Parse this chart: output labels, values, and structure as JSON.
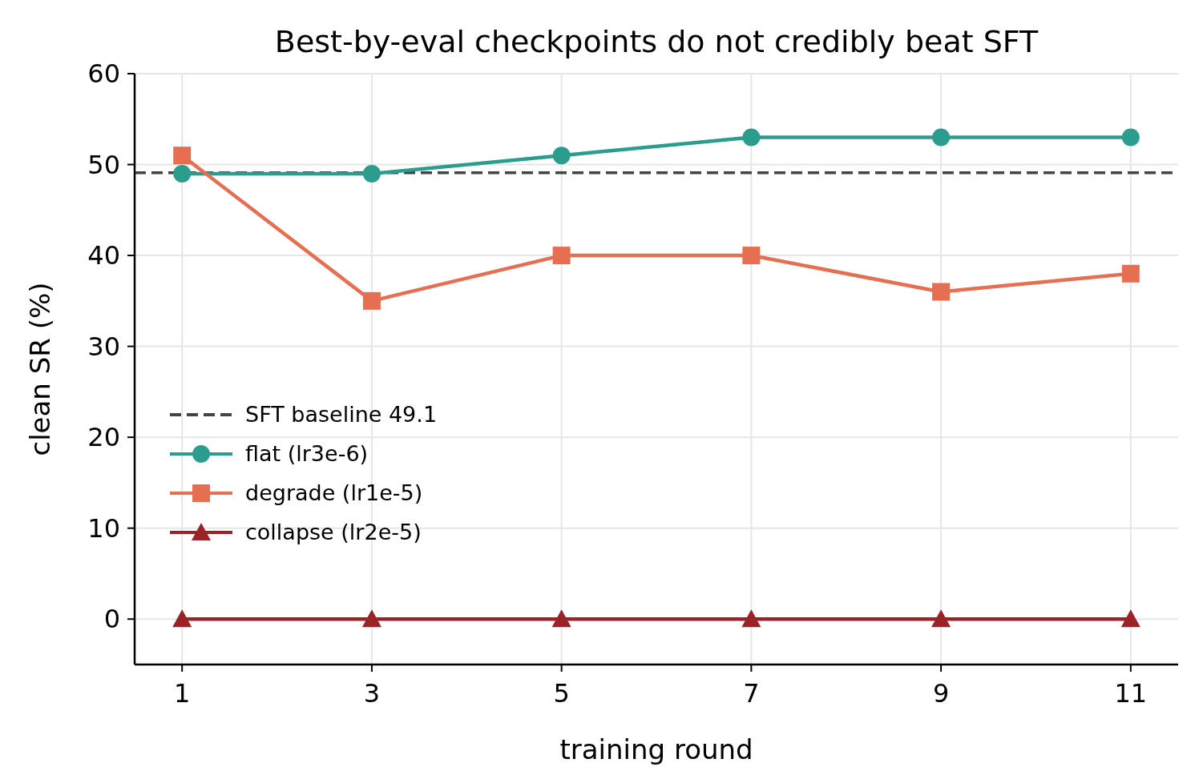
{
  "chart_data": {
    "type": "line",
    "title": "Best-by-eval checkpoints do not credibly beat SFT",
    "xlabel": "training round",
    "ylabel": "clean SR (%)",
    "x": [
      1,
      3,
      5,
      7,
      9,
      11
    ],
    "series": [
      {
        "name": "flat (lr3e-6)",
        "color": "#2a9d8f",
        "marker": "circle",
        "values": [
          49,
          49,
          51,
          53,
          53,
          53
        ]
      },
      {
        "name": "degrade (lr1e-5)",
        "color": "#e76f51",
        "marker": "square",
        "values": [
          51,
          35,
          40,
          40,
          36,
          38
        ]
      },
      {
        "name": "collapse (lr2e-5)",
        "color": "#9b2226",
        "marker": "triangle",
        "values": [
          0,
          0,
          0,
          0,
          0,
          0
        ]
      }
    ],
    "ref_lines": [
      {
        "axis": "y",
        "value": 49.1,
        "label": "SFT baseline 49.1",
        "color": "#444444",
        "line_style": "dashed"
      }
    ],
    "xlim": [
      0.5,
      11.5
    ],
    "xticks": [
      1,
      3,
      5,
      7,
      9,
      11
    ],
    "ylim": [
      -5,
      60
    ],
    "yticks": [
      0,
      10,
      20,
      30,
      40,
      50,
      60
    ],
    "grid": true,
    "legend": "left",
    "line_style": "solid"
  }
}
